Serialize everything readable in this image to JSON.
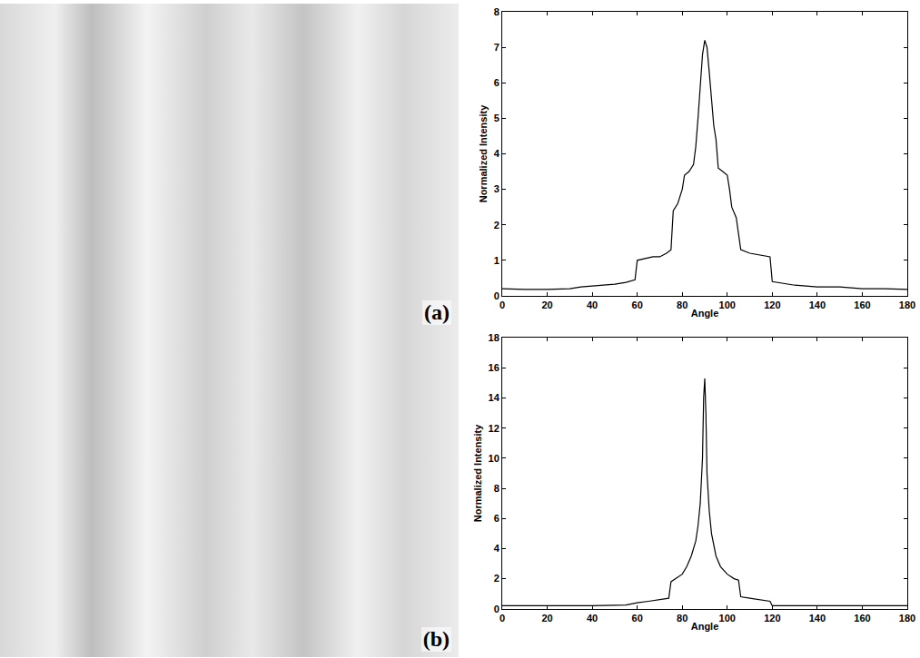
{
  "chart_data": [
    {
      "type": "line",
      "annotation": "(a)",
      "x_label": "Angle",
      "y_label": "Normalized Intensity",
      "x": [
        0,
        10,
        20,
        30,
        35,
        40,
        45,
        50,
        55,
        59,
        60,
        63,
        67,
        70,
        73,
        75,
        76,
        78,
        80,
        81,
        83,
        85,
        86,
        87,
        88,
        89,
        90,
        91,
        92,
        93,
        94,
        95,
        96,
        98,
        100,
        101,
        102,
        104,
        105,
        106,
        110,
        115,
        119,
        120,
        125,
        130,
        140,
        150,
        160,
        170,
        180
      ],
      "values": [
        0.2,
        0.18,
        0.18,
        0.2,
        0.25,
        0.28,
        0.3,
        0.33,
        0.38,
        0.45,
        1.0,
        1.05,
        1.1,
        1.1,
        1.2,
        1.3,
        2.4,
        2.6,
        3.0,
        3.4,
        3.5,
        3.7,
        4.2,
        5.0,
        6.0,
        6.8,
        7.2,
        7.0,
        6.3,
        5.5,
        4.8,
        4.4,
        3.6,
        3.5,
        3.4,
        3.0,
        2.5,
        2.2,
        1.8,
        1.3,
        1.2,
        1.15,
        1.1,
        0.4,
        0.35,
        0.3,
        0.25,
        0.25,
        0.2,
        0.2,
        0.18
      ],
      "color": "#000000",
      "xlim": [
        0,
        180
      ],
      "xticks": [
        0,
        20,
        40,
        60,
        80,
        100,
        120,
        140,
        160,
        180
      ],
      "ylim": [
        0,
        8
      ],
      "yticks": [
        0,
        1,
        2,
        3,
        4,
        5,
        6,
        7,
        8
      ],
      "grid": false
    },
    {
      "type": "line",
      "annotation": "(b)",
      "x_label": "Angle",
      "y_label": "Normalized Intensity",
      "x": [
        0,
        20,
        40,
        55,
        60,
        65,
        70,
        74,
        75,
        78,
        80,
        82,
        84,
        86,
        87,
        88,
        89,
        89.5,
        90,
        90.5,
        91,
        92,
        93,
        95,
        97,
        100,
        103,
        105,
        106,
        110,
        115,
        119,
        120,
        130,
        150,
        180
      ],
      "values": [
        0.2,
        0.2,
        0.2,
        0.25,
        0.4,
        0.5,
        0.6,
        0.7,
        1.8,
        2.1,
        2.3,
        2.8,
        3.5,
        4.5,
        5.5,
        7.0,
        10,
        14,
        15.3,
        13,
        9,
        6.5,
        5,
        3.5,
        2.8,
        2.3,
        2.0,
        1.9,
        0.8,
        0.7,
        0.6,
        0.5,
        0.2,
        0.2,
        0.2,
        0.2
      ],
      "color": "#000000",
      "xlim": [
        0,
        180
      ],
      "xticks": [
        0,
        20,
        40,
        60,
        80,
        100,
        120,
        140,
        160,
        180
      ],
      "ylim": [
        0,
        18
      ],
      "yticks": [
        0,
        2,
        4,
        6,
        8,
        10,
        12,
        14,
        16,
        18
      ],
      "grid": false
    }
  ]
}
